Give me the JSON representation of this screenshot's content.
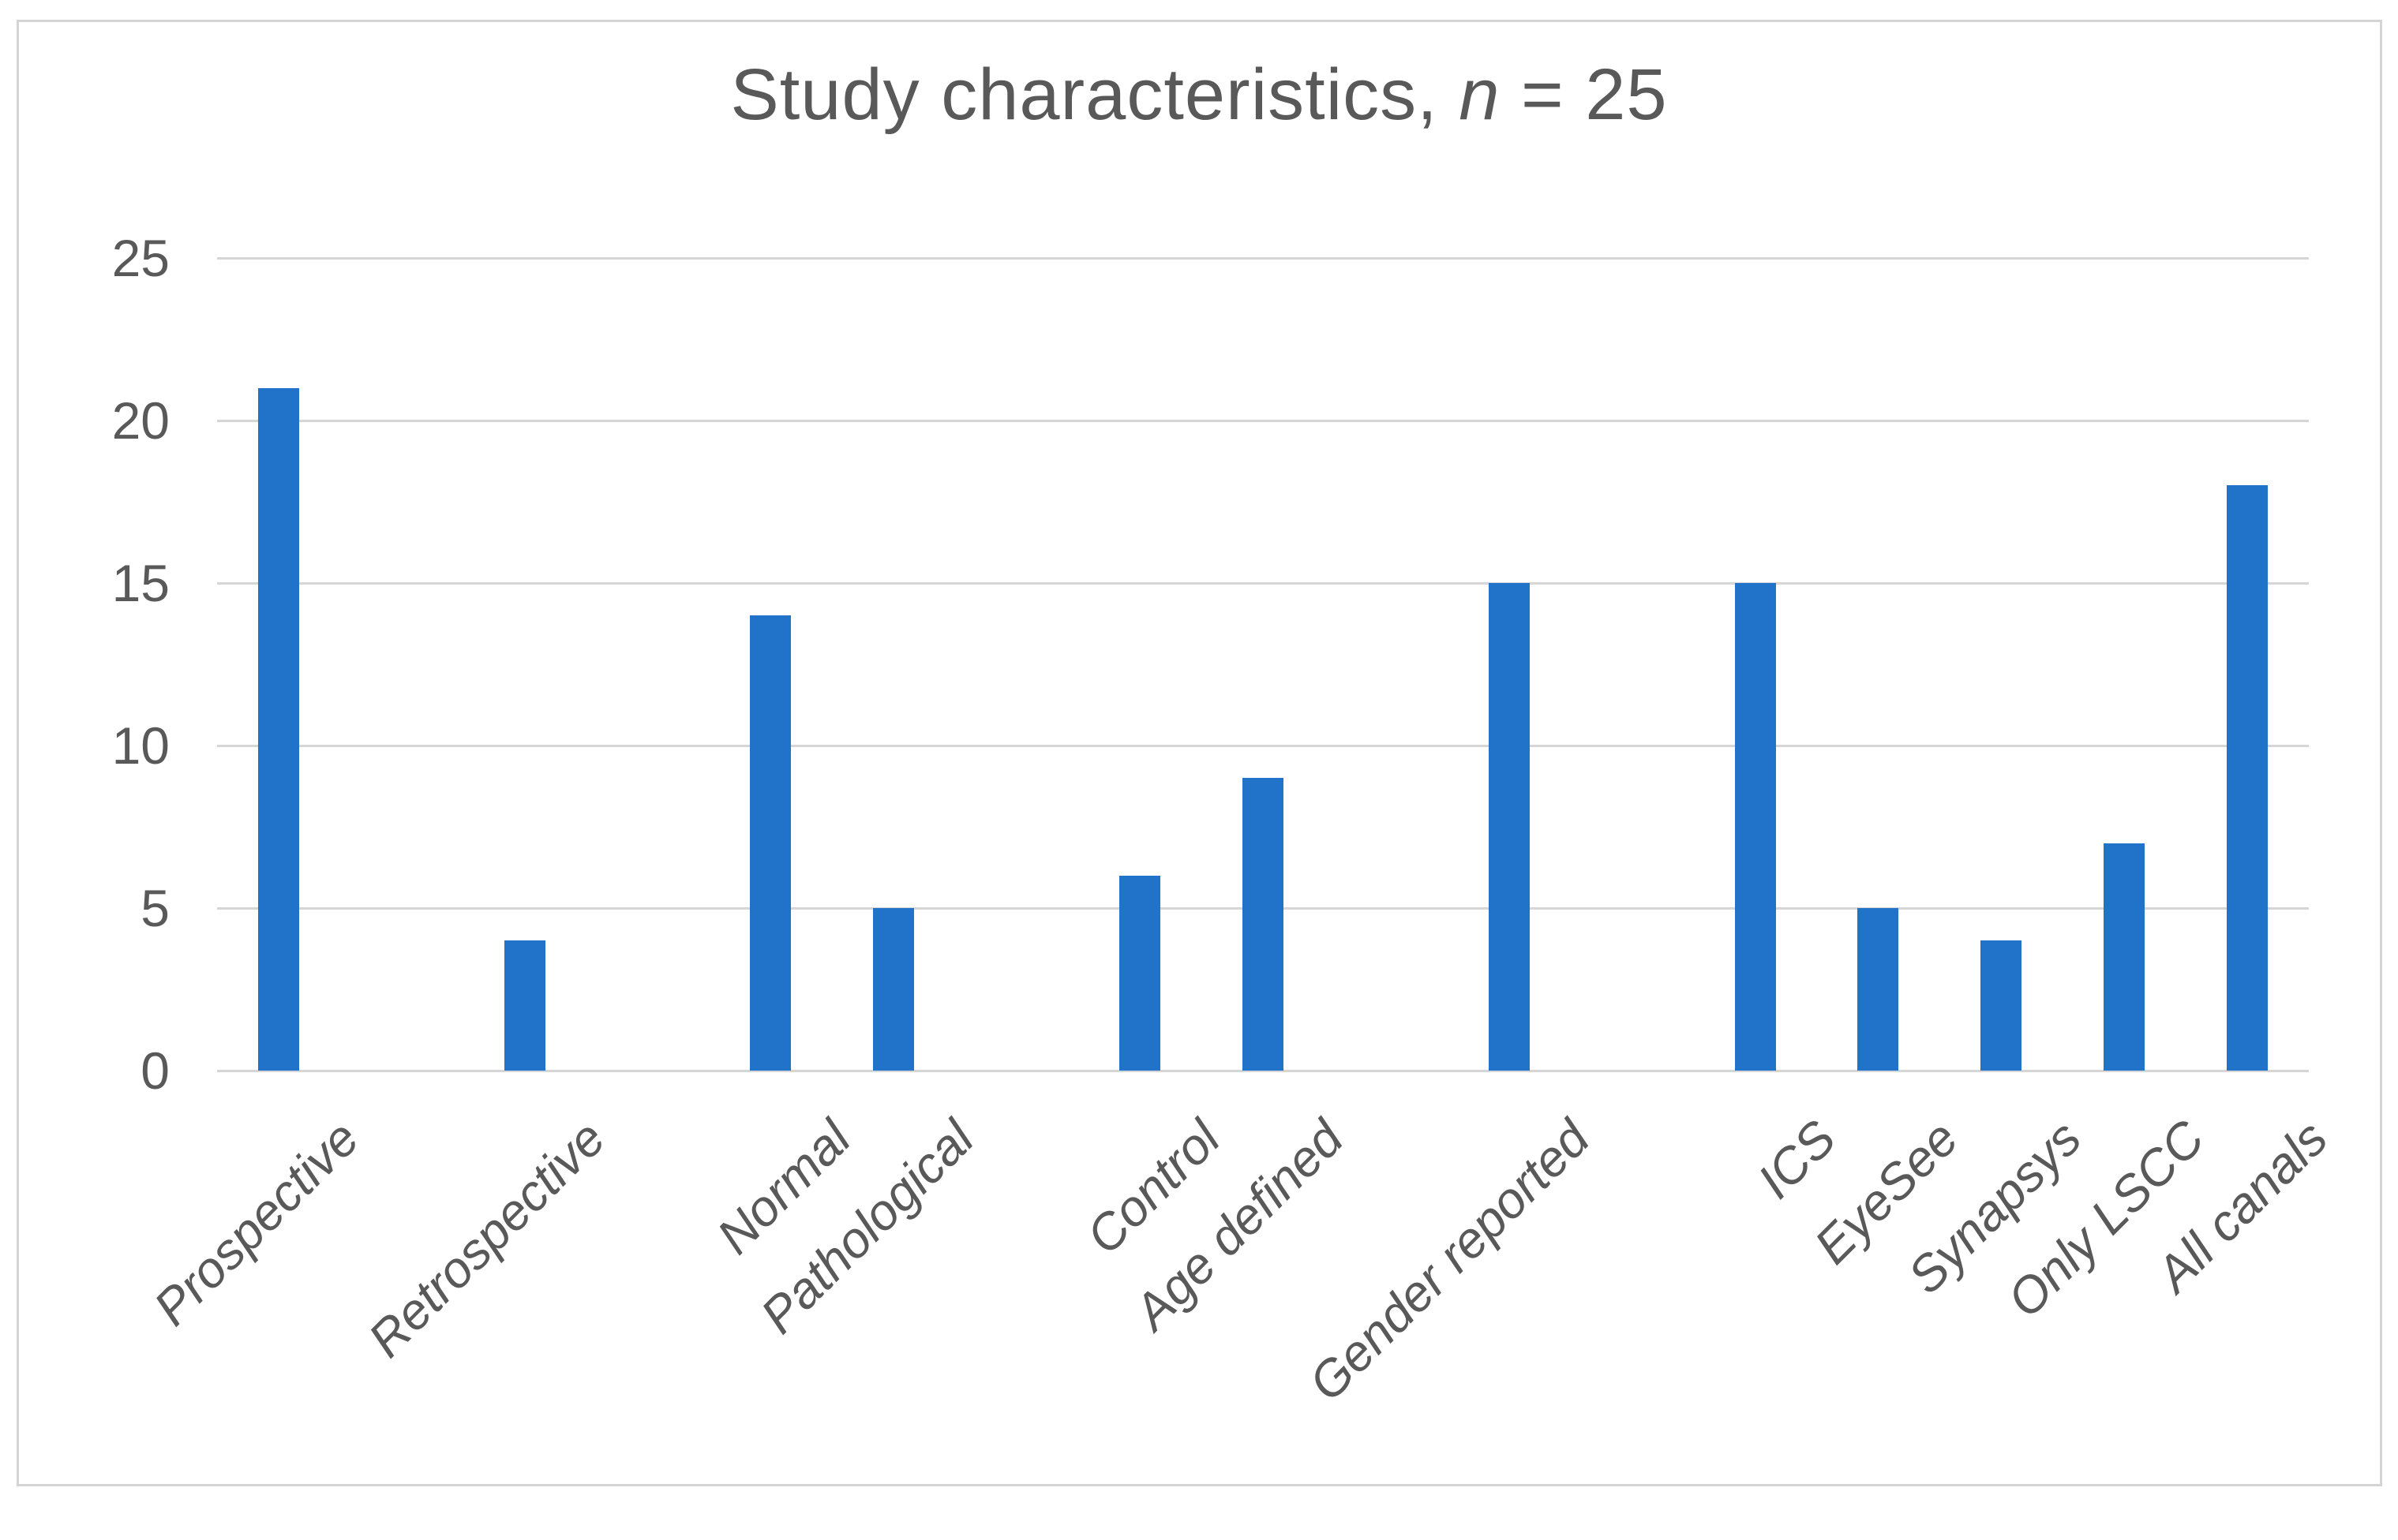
{
  "chart": {
    "title": {
      "prefix": "Study characteristics, ",
      "n_italic": "n",
      "suffix": " = 25"
    }
  },
  "chart_data": {
    "type": "bar",
    "title": "Study characteristics, n = 25",
    "categories": [
      "Prospective",
      "Retrospective",
      "Normal",
      "Pathological",
      "Control",
      "Age defined",
      "Gender reported",
      "ICS",
      "EyeSee",
      "Synapsys",
      "Only LSCC",
      "All canals"
    ],
    "values": [
      21,
      4,
      14,
      5,
      6,
      9,
      15,
      15,
      5,
      4,
      7,
      18
    ],
    "slot_indices": [
      0,
      2,
      4,
      5,
      7,
      8,
      10,
      12,
      13,
      14,
      15,
      16
    ],
    "total_slots": 17,
    "xlabel": "",
    "ylabel": "",
    "y_ticks": [
      0,
      5,
      10,
      15,
      20,
      25
    ],
    "ylim": [
      0,
      25
    ],
    "grid": true,
    "legend": false,
    "layout": {
      "x_labels_rotation_deg": -45,
      "x_labels_italic": true,
      "legend_position": "none"
    },
    "colors": {
      "bar": "#2173c9",
      "grid": "#d6d6d6",
      "text": "#595959",
      "frame": "#d4d4d4",
      "background": "#ffffff"
    }
  }
}
